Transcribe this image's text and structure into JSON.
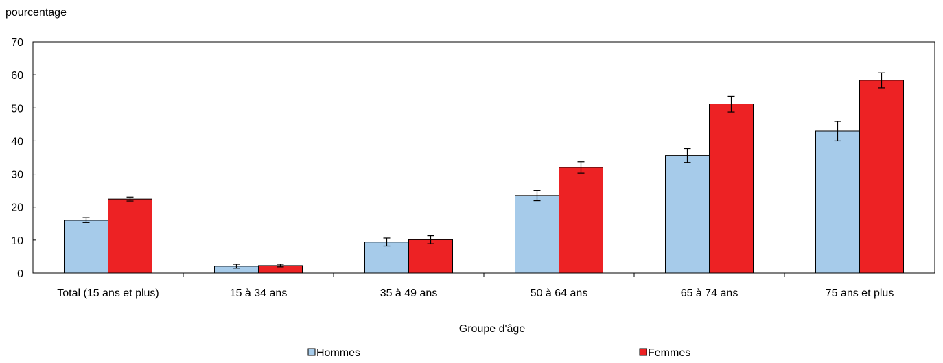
{
  "chart_data": {
    "type": "bar",
    "title": "",
    "ylabel": "pourcentage",
    "xlabel": "Groupe d'âge",
    "ylim": [
      0,
      70
    ],
    "yticks": [
      0,
      10,
      20,
      30,
      40,
      50,
      60,
      70
    ],
    "grid": false,
    "legend_position": "bottom",
    "categories": [
      "Total (15 ans et plus)",
      "15 à 34 ans",
      "35 à 49 ans",
      "50 à 64 ans",
      "65 à 74 ans",
      "75 ans et plus"
    ],
    "series": [
      {
        "name": "Hommes",
        "color": "#a6cbea",
        "values": [
          16.0,
          2.1,
          9.4,
          23.5,
          35.6,
          43.0
        ],
        "error_low": [
          15.3,
          1.5,
          8.2,
          21.9,
          33.5,
          40.0
        ],
        "error_high": [
          16.8,
          2.7,
          10.6,
          25.0,
          37.7,
          45.9
        ]
      },
      {
        "name": "Femmes",
        "color": "#ed2224",
        "values": [
          22.4,
          2.3,
          10.1,
          32.0,
          51.2,
          58.4
        ],
        "error_low": [
          21.8,
          1.9,
          8.9,
          30.3,
          48.8,
          56.1
        ],
        "error_high": [
          23.0,
          2.7,
          11.3,
          33.7,
          53.5,
          60.6
        ]
      }
    ]
  }
}
